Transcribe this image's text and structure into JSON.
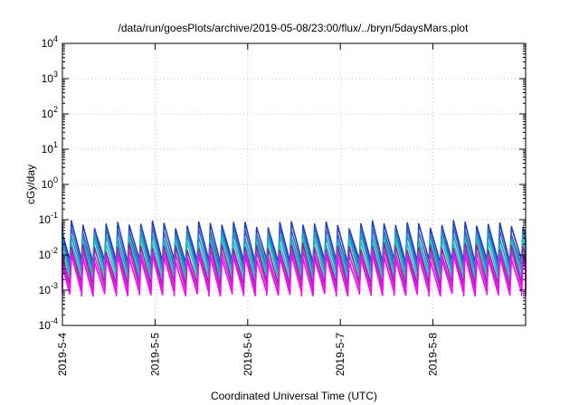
{
  "chart_data": {
    "type": "line",
    "title": "/data/run/goesPlots/archive/2019-05-08/23:00/flux/../bryn/5daysMars.plot",
    "xlabel": "Coordinated Universal Time (UTC)",
    "ylabel": "cGy/day",
    "yscale": "log",
    "ylim": [
      0.0001,
      10000
    ],
    "y_ticks": [
      {
        "base": "10",
        "exp": "-4",
        "value": 0.0001
      },
      {
        "base": "10",
        "exp": "-3",
        "value": 0.001
      },
      {
        "base": "10",
        "exp": "-2",
        "value": 0.01
      },
      {
        "base": "10",
        "exp": "-1",
        "value": 0.1
      },
      {
        "base": "10",
        "exp": "0",
        "value": 1
      },
      {
        "base": "10",
        "exp": "1",
        "value": 10
      },
      {
        "base": "10",
        "exp": "2",
        "value": 100
      },
      {
        "base": "10",
        "exp": "3",
        "value": 1000
      },
      {
        "base": "10",
        "exp": "4",
        "value": 10000
      }
    ],
    "xlim": [
      "2019-05-04T00:00",
      "2019-05-09T00:00"
    ],
    "x_ticks": [
      "2019-5-4",
      "2019-5-5",
      "2019-5-6",
      "2019-5-7",
      "2019-5-8"
    ],
    "grid": true,
    "cycles_per_day": 8,
    "series": [
      {
        "color": "#1f3fbf",
        "peak": 0.075,
        "trough": 0.0065
      },
      {
        "color": "#3a5fd0",
        "peak": 0.052,
        "trough": 0.0045
      },
      {
        "color": "#1aa0b8",
        "peak": 0.036,
        "trough": 0.0032
      },
      {
        "color": "#20c0c8",
        "peak": 0.025,
        "trough": 0.0022
      },
      {
        "color": "#8a2a9a",
        "peak": 0.017,
        "trough": 0.0015
      },
      {
        "color": "#c030c8",
        "peak": 0.012,
        "trough": 0.0011
      },
      {
        "color": "#ff00ff",
        "peak": 0.0085,
        "trough": 0.00078
      }
    ]
  }
}
